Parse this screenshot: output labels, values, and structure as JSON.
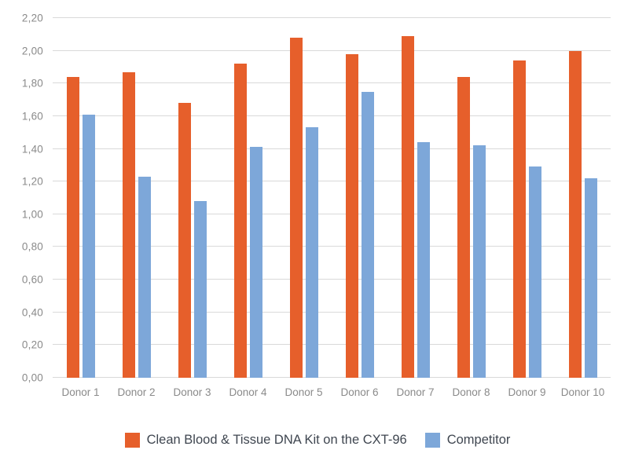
{
  "chart_data": {
    "type": "bar",
    "title": "",
    "xlabel": "",
    "ylabel": "",
    "categories": [
      "Donor 1",
      "Donor 2",
      "Donor 3",
      "Donor 4",
      "Donor 5",
      "Donor 6",
      "Donor 7",
      "Donor 8",
      "Donor 9",
      "Donor 10"
    ],
    "series": [
      {
        "name": "Clean Blood & Tissue DNA Kit on the CXT-96",
        "color": "#e65f2b",
        "values": [
          1.84,
          1.87,
          1.68,
          1.92,
          2.08,
          1.98,
          2.09,
          1.84,
          1.94,
          2.0
        ]
      },
      {
        "name": "Competitor",
        "color": "#7da7d9",
        "values": [
          1.61,
          1.23,
          1.08,
          1.41,
          1.53,
          1.75,
          1.44,
          1.42,
          1.29,
          1.22
        ]
      }
    ],
    "ylim": [
      0,
      2.2
    ],
    "ytick_step": 0.2,
    "ytick_labels": [
      "0,00",
      "0,20",
      "0,40",
      "0,60",
      "0,80",
      "1,00",
      "1,20",
      "1,40",
      "1,60",
      "1,80",
      "2,00",
      "2,20"
    ],
    "grid": true,
    "gridline_color": "#d9d9d9",
    "tick_label_color": "#8a8a8a",
    "legend_text_color": "#3f4650",
    "legend_position": "bottom",
    "decimal_separator": ","
  }
}
